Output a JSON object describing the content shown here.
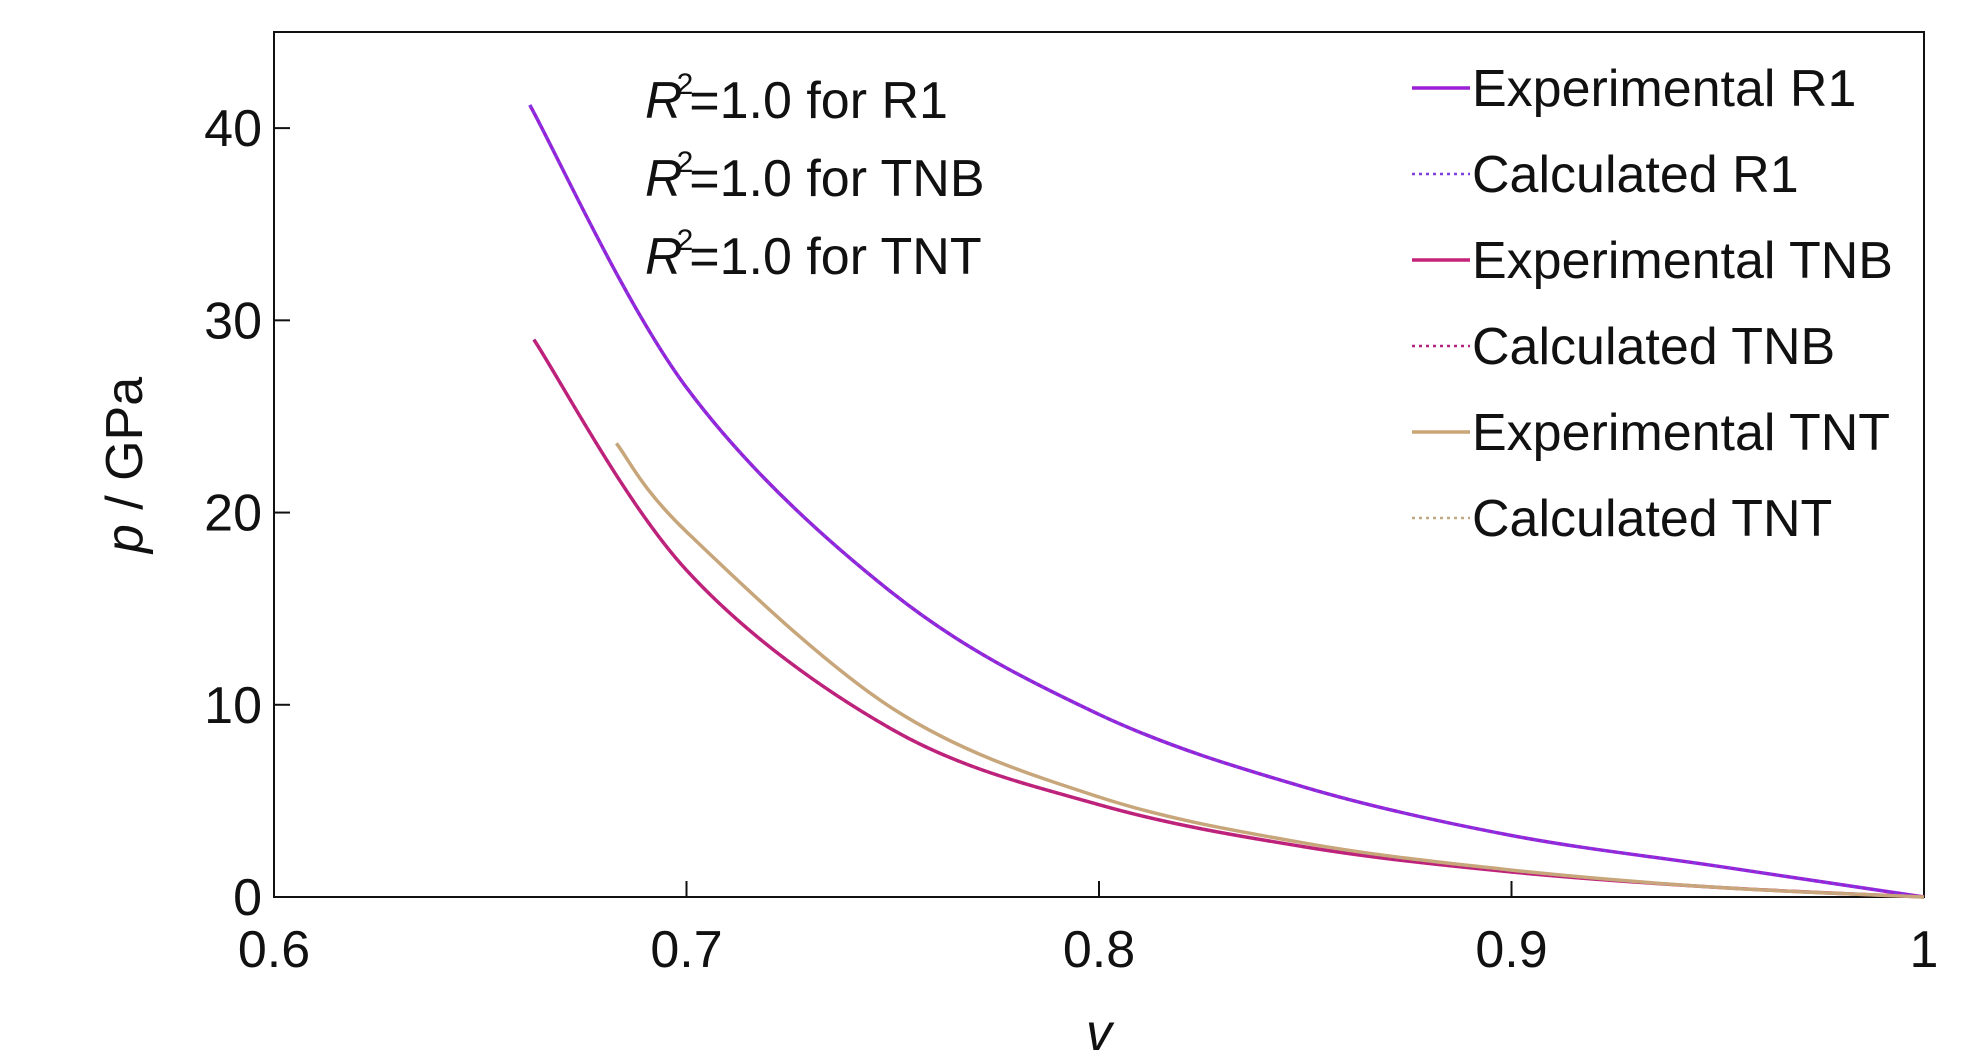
{
  "chart_data": {
    "type": "line",
    "xlabel": "v",
    "ylabel": "p",
    "ylabel_unit": " / GPa",
    "xlim": [
      0.6,
      1.0
    ],
    "ylim": [
      0,
      45
    ],
    "xticks": [
      {
        "value": 0.6,
        "label": "0.6"
      },
      {
        "value": 0.7,
        "label": "0.7"
      },
      {
        "value": 0.8,
        "label": "0.8"
      },
      {
        "value": 0.9,
        "label": "0.9"
      },
      {
        "value": 1.0,
        "label": "1"
      }
    ],
    "yticks": [
      {
        "value": 0,
        "label": "0"
      },
      {
        "value": 10,
        "label": "10"
      },
      {
        "value": 20,
        "label": "20"
      },
      {
        "value": 30,
        "label": "30"
      },
      {
        "value": 40,
        "label": "40"
      }
    ],
    "grid": false,
    "legend_position": "top-right",
    "annotations": [
      {
        "symbol": "R",
        "superscript": "2",
        "text": "=1.0 for R1"
      },
      {
        "symbol": "R",
        "superscript": "2",
        "text": "=1.0 for TNB"
      },
      {
        "symbol": "R",
        "superscript": "2",
        "text": "=1.0 for TNT"
      }
    ],
    "series": [
      {
        "name": "Experimental R1",
        "color": "#9a1fd6",
        "dash": "solid",
        "x": [
          0.662,
          0.7,
          0.75,
          0.8,
          0.85,
          0.9,
          0.95,
          1.0
        ],
        "y": [
          41.2,
          26.5,
          15.8,
          9.5,
          5.7,
          3.2,
          1.6,
          0.0
        ]
      },
      {
        "name": "Calculated R1",
        "color": "#7b3fe0",
        "dash": "dotted",
        "x": [
          0.662,
          0.7,
          0.75,
          0.8,
          0.85,
          0.9,
          0.95,
          1.0
        ],
        "y": [
          41.2,
          26.5,
          15.8,
          9.5,
          5.7,
          3.2,
          1.6,
          0.0
        ]
      },
      {
        "name": "Experimental TNB",
        "color": "#c4237a",
        "dash": "solid",
        "x": [
          0.663,
          0.7,
          0.75,
          0.8,
          0.85,
          0.9,
          0.95,
          1.0
        ],
        "y": [
          29.0,
          17.0,
          8.7,
          4.8,
          2.6,
          1.3,
          0.5,
          0.0
        ]
      },
      {
        "name": "Calculated TNB",
        "color": "#b0237e",
        "dash": "dotted",
        "x": [
          0.663,
          0.7,
          0.75,
          0.8,
          0.85,
          0.9,
          0.95,
          1.0
        ],
        "y": [
          29.0,
          17.0,
          8.7,
          4.8,
          2.6,
          1.3,
          0.5,
          0.0
        ]
      },
      {
        "name": "Experimental TNT",
        "color": "#cba577",
        "dash": "solid",
        "x": [
          0.683,
          0.7,
          0.75,
          0.8,
          0.85,
          0.9,
          0.95,
          1.0
        ],
        "y": [
          23.6,
          19.0,
          9.8,
          5.2,
          2.8,
          1.4,
          0.5,
          0.0
        ]
      },
      {
        "name": "Calculated TNT",
        "color": "#bfa882",
        "dash": "dotted",
        "x": [
          0.683,
          0.7,
          0.75,
          0.8,
          0.85,
          0.9,
          0.95,
          1.0
        ],
        "y": [
          23.6,
          19.0,
          9.8,
          5.2,
          2.8,
          1.4,
          0.5,
          0.0
        ]
      }
    ]
  }
}
